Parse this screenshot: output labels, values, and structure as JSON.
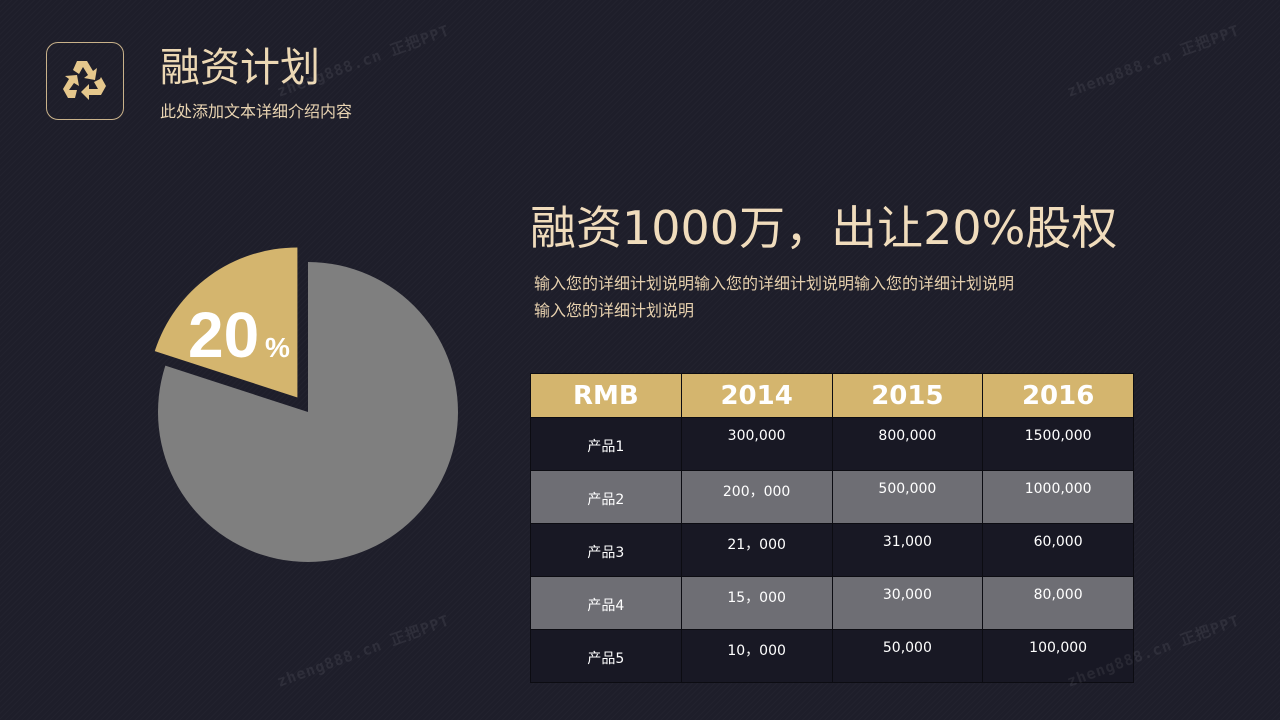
{
  "header": {
    "title": "融资计划",
    "subtitle": "此处添加文本详细介绍内容",
    "logo_icon": "recycle-icon"
  },
  "main": {
    "headline": "融资1000万，出让20%股权",
    "description_lines": [
      "输入您的详细计划说明输入您的详细计划说明输入您的详细计划说明",
      "输入您的详细计划说明"
    ]
  },
  "chart_data": {
    "type": "pie",
    "slices": [
      {
        "label": "20%",
        "value": 20,
        "color": "#d4b56e",
        "exploded": true
      },
      {
        "label": "",
        "value": 80,
        "color": "#7f7f7f"
      }
    ],
    "highlight_label": {
      "number": "20",
      "unit": "%"
    }
  },
  "table": {
    "headers": [
      "RMB",
      "2014",
      "2015",
      "2016"
    ],
    "rows": [
      [
        "产品1",
        "300,000",
        "800,000",
        "1500,000"
      ],
      [
        "产品2",
        "200，000",
        "500,000",
        "1000,000"
      ],
      [
        "产品3",
        "21，000",
        "31,000",
        "60,000"
      ],
      [
        "产品4",
        "15，000",
        "30,000",
        "80,000"
      ],
      [
        "产品5",
        "10，000",
        "50,000",
        "100,000"
      ]
    ]
  },
  "watermark": {
    "text": "zheng888.cn 正把PPT"
  },
  "colors": {
    "background": "#1e1e2a",
    "gold": "#d4b56e",
    "grey": "#7f7f7f",
    "text": "#ecd8b4"
  }
}
